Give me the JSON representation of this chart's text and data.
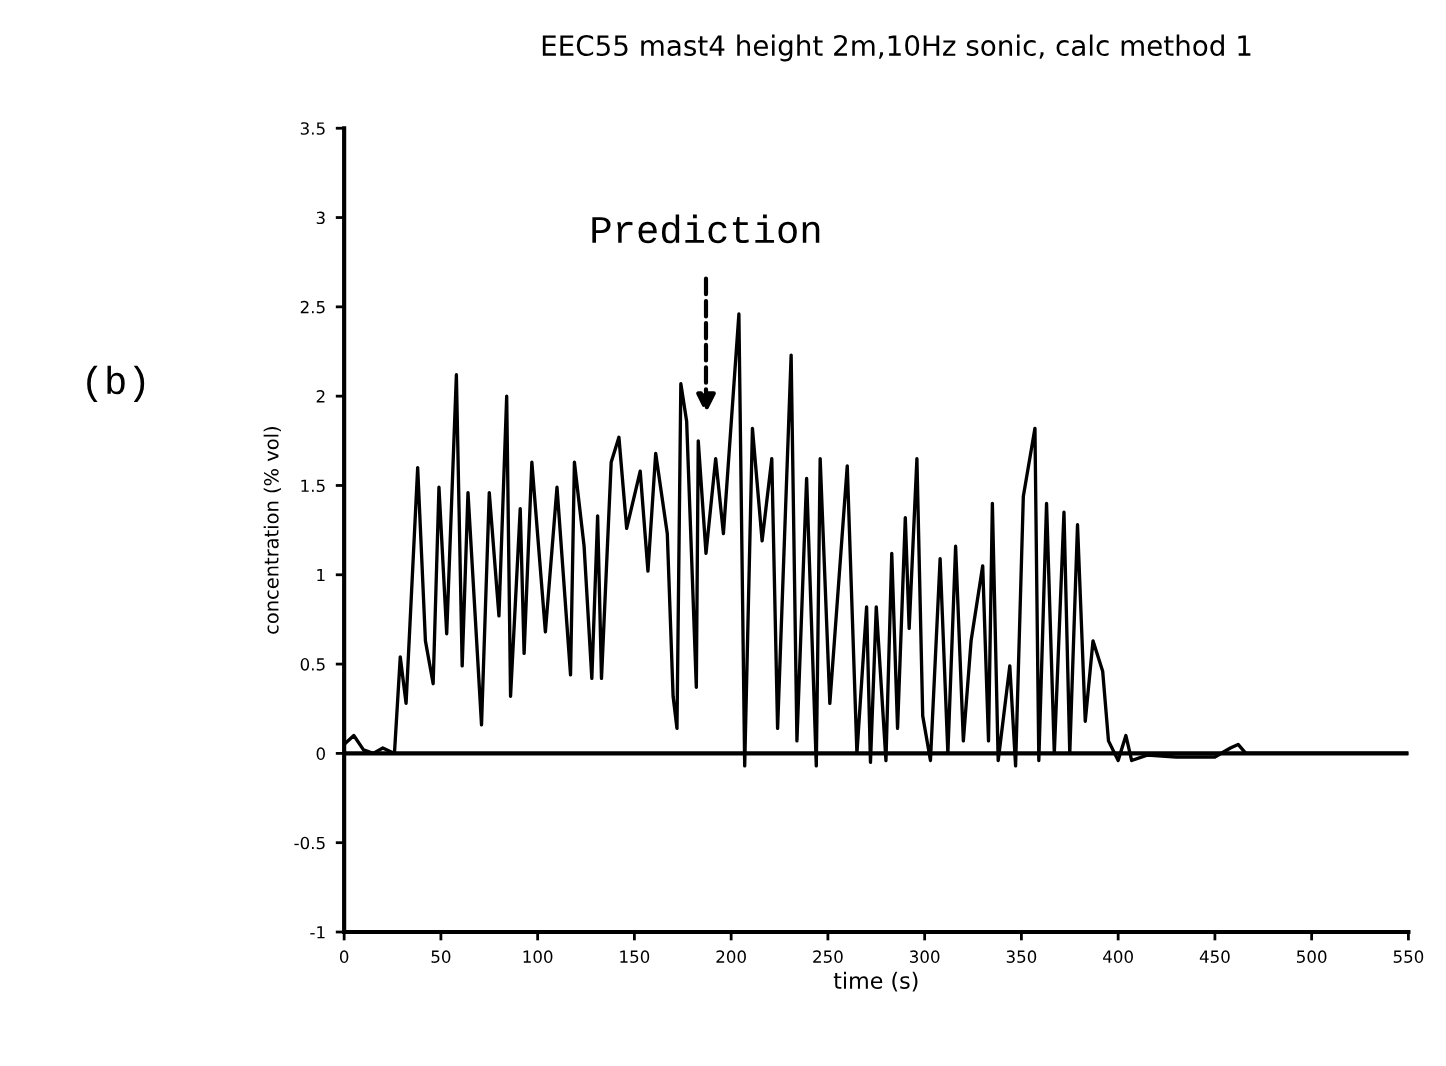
{
  "chart_data": {
    "type": "line",
    "title": "EEC55 mast4 height 2m,10Hz sonic, calc method 1",
    "xlabel": "time (s)",
    "ylabel": "concentration (% vol)",
    "x": [
      0,
      5,
      10,
      15,
      20,
      26,
      29,
      32,
      38,
      42,
      46,
      49,
      53,
      58,
      61,
      64,
      71,
      75,
      80,
      84,
      86,
      91,
      93,
      97,
      104,
      110,
      117,
      119,
      124,
      128,
      131,
      133,
      138,
      142,
      146,
      153,
      157,
      161,
      167,
      170,
      172,
      174,
      177,
      182,
      183,
      187,
      192,
      196,
      204,
      207,
      211,
      216,
      221,
      224,
      231,
      234,
      239,
      244,
      246,
      251,
      260,
      265,
      270,
      272,
      275,
      280,
      283,
      286,
      290,
      292,
      296,
      299,
      303,
      308,
      312,
      316,
      320,
      324,
      330,
      333,
      335,
      338,
      344,
      347,
      351,
      357,
      359,
      363,
      367,
      372,
      375,
      379,
      383,
      387,
      392,
      395,
      400,
      404,
      407,
      415,
      430,
      450,
      458,
      462,
      466,
      480,
      500,
      550
    ],
    "series": [
      {
        "color": "#000000",
        "values": [
          0.05,
          0.1,
          0.02,
          0.0,
          0.03,
          0.0,
          0.54,
          0.28,
          1.6,
          0.63,
          0.39,
          1.49,
          0.67,
          2.12,
          0.49,
          1.46,
          0.16,
          1.46,
          0.77,
          2.0,
          0.32,
          1.37,
          0.56,
          1.63,
          0.68,
          1.49,
          0.44,
          1.63,
          1.16,
          0.42,
          1.33,
          0.42,
          1.63,
          1.77,
          1.26,
          1.58,
          1.02,
          1.68,
          1.23,
          0.32,
          0.14,
          2.07,
          1.86,
          0.37,
          1.75,
          1.12,
          1.65,
          1.23,
          2.46,
          -0.07,
          1.82,
          1.19,
          1.65,
          0.14,
          2.23,
          0.07,
          1.54,
          -0.07,
          1.65,
          0.28,
          1.61,
          0.0,
          0.82,
          -0.05,
          0.82,
          -0.04,
          1.12,
          0.14,
          1.32,
          0.7,
          1.65,
          0.21,
          -0.04,
          1.09,
          0.0,
          1.16,
          0.07,
          0.63,
          1.05,
          0.07,
          1.4,
          -0.04,
          0.49,
          -0.07,
          1.44,
          1.82,
          -0.04,
          1.4,
          0.0,
          1.35,
          0.0,
          1.28,
          0.18,
          0.63,
          0.46,
          0.07,
          -0.04,
          0.1,
          -0.04,
          -0.01,
          -0.02,
          -0.02,
          0.03,
          0.05,
          0.0,
          0.0,
          0.0,
          0.0
        ]
      }
    ],
    "xlim": [
      0,
      550
    ],
    "xticks": [
      0,
      50,
      100,
      150,
      200,
      250,
      300,
      350,
      400,
      450,
      500,
      550
    ],
    "ylim": [
      -1,
      3.5
    ],
    "yticks": [
      -1,
      -0.5,
      0,
      0.5,
      1,
      1.5,
      2,
      2.5,
      3,
      3.5
    ],
    "ref_lines": [
      {
        "axis": "y",
        "value": 0,
        "color": "#000000"
      }
    ],
    "annotations": [
      "Prediction",
      "(b)"
    ],
    "grid": false,
    "legend": false,
    "line_style": "solid",
    "marker": "none"
  }
}
